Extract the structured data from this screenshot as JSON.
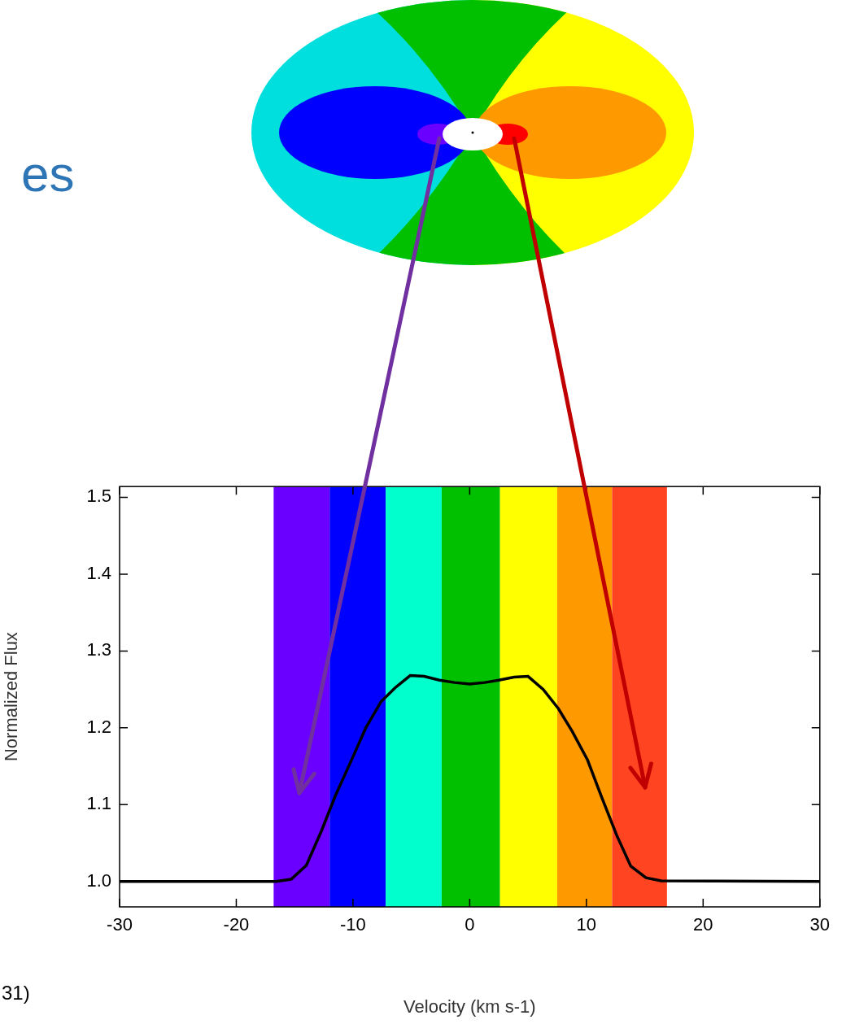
{
  "chart_data": {
    "type": "line",
    "title": "es",
    "annotations": [
      "31)"
    ],
    "x_label": "Velocity (km s-1)",
    "y_label": "Normalized Flux",
    "x": [
      -30,
      -16.6,
      -15.3,
      -14.0,
      -12.7,
      -11.5,
      -10.1,
      -8.9,
      -7.6,
      -6.4,
      -5.1,
      -3.9,
      -2.6,
      -1.3,
      0,
      1.3,
      2.5,
      3.8,
      5.0,
      6.3,
      7.6,
      8.8,
      10.1,
      11.3,
      12.6,
      13.8,
      15.1,
      16.4,
      30
    ],
    "values": [
      1.0,
      1.0,
      1.003,
      1.021,
      1.066,
      1.112,
      1.159,
      1.2,
      1.234,
      1.252,
      1.268,
      1.267,
      1.262,
      1.259,
      1.257,
      1.259,
      1.262,
      1.266,
      1.267,
      1.25,
      1.225,
      1.195,
      1.158,
      1.11,
      1.06,
      1.02,
      1.005,
      1.001,
      1.0
    ],
    "color": "#000000",
    "bands": [
      {
        "from": -16.8,
        "to": -12.0,
        "color": "#6a00ff"
      },
      {
        "from": -12.0,
        "to": -7.2,
        "color": "#0000ff"
      },
      {
        "from": -7.2,
        "to": -2.4,
        "color": "#00ffcc"
      },
      {
        "from": -2.4,
        "to": 2.6,
        "color": "#00c000"
      },
      {
        "from": 2.6,
        "to": 7.5,
        "color": "#ffff00"
      },
      {
        "from": 7.5,
        "to": 12.2,
        "color": "#ff9900"
      },
      {
        "from": 12.2,
        "to": 16.9,
        "color": "#ff4422"
      }
    ],
    "xlim": [
      -30,
      30
    ],
    "xticks": [
      -30,
      -20,
      -10,
      0,
      10,
      20,
      30
    ],
    "ylim": [
      0.967,
      1.514
    ],
    "yticks": [
      {
        "value": 1,
        "label": "1.0"
      },
      1.1,
      1.2,
      1.3,
      1.4,
      1.5
    ],
    "grid": false
  }
}
